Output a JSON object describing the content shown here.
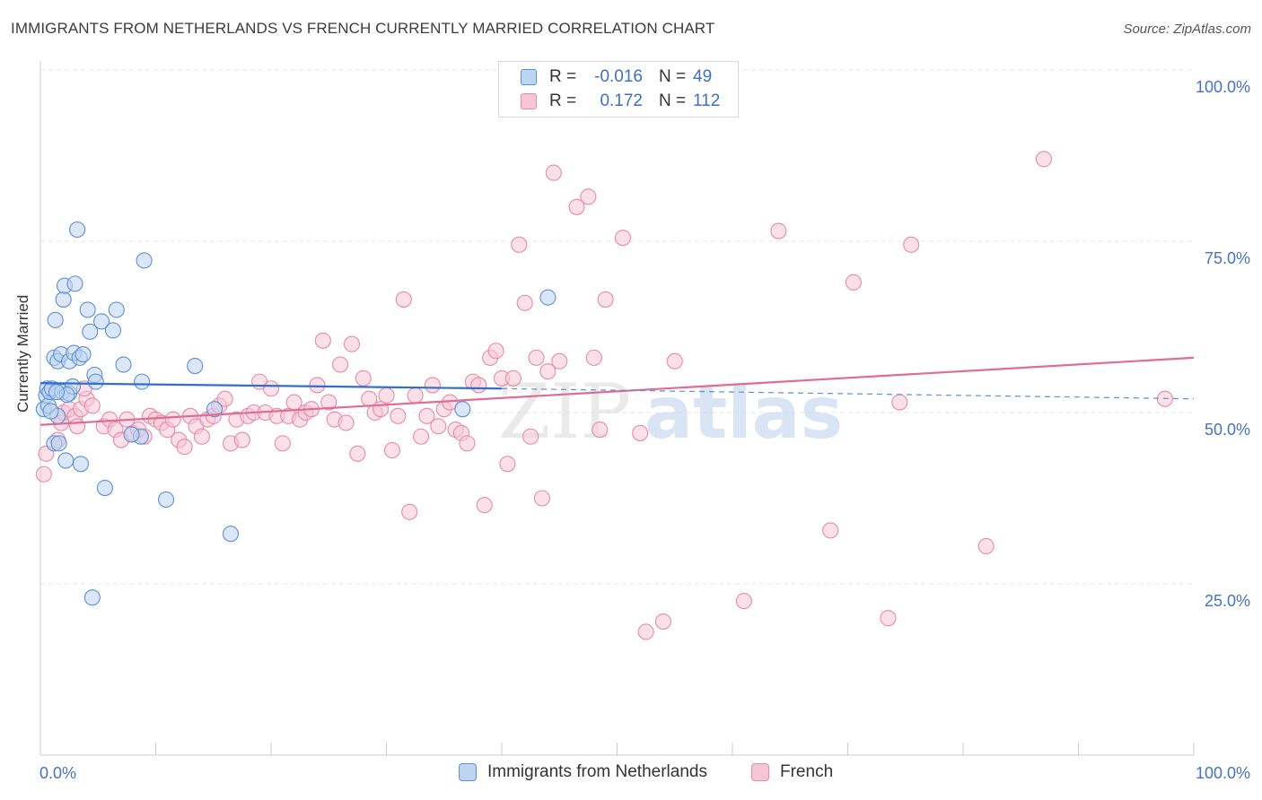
{
  "title": "IMMIGRANTS FROM NETHERLANDS VS FRENCH CURRENTLY MARRIED CORRELATION CHART",
  "source": "Source: ZipAtlas.com",
  "watermark": {
    "zip": "ZIP",
    "atlas": "atlas"
  },
  "legend": {
    "r_label": "R =",
    "n_label": "N =",
    "rows": [
      {
        "r": "-0.016",
        "n": "49"
      },
      {
        "r": "0.172",
        "n": "112"
      }
    ]
  },
  "colors": {
    "blue_fill": "#bdd4f3",
    "blue_stroke": "#5b8fd6",
    "blue_line": "#2f6fcf",
    "pink_fill": "#f7c6d6",
    "pink_stroke": "#e78aa8",
    "pink_line": "#e06b93",
    "grid": "#e6e6e6",
    "tick_text": "#4472c4"
  },
  "chart_data": {
    "type": "scatter",
    "title": "IMMIGRANTS FROM NETHERLANDS VS FRENCH CURRENTLY MARRIED CORRELATION CHART",
    "xlabel": "",
    "ylabel": "Currently Married",
    "xlim": [
      0,
      100
    ],
    "ylim": [
      0,
      102
    ],
    "x_tick_labels": [
      "0.0%",
      "100.0%"
    ],
    "y_tick_labels": [
      "100.0%",
      "75.0%",
      "50.0%",
      "25.0%"
    ],
    "y_tick_values": [
      100,
      75,
      50,
      25
    ],
    "series": [
      {
        "name": "Immigrants from Netherlands",
        "r": -0.016,
        "n": 49,
        "trend": {
          "x": [
            0,
            40
          ],
          "y": [
            54.3,
            53.5
          ],
          "dash_x": [
            40,
            100
          ],
          "dash_y": [
            53.5,
            52.0
          ]
        },
        "points": [
          [
            0.3,
            50.5
          ],
          [
            0.5,
            52.5
          ],
          [
            0.6,
            53.5
          ],
          [
            0.7,
            51.0
          ],
          [
            0.8,
            53.0
          ],
          [
            1.0,
            53.5
          ],
          [
            1.2,
            45.5
          ],
          [
            1.2,
            58.0
          ],
          [
            1.3,
            63.5
          ],
          [
            1.5,
            57.5
          ],
          [
            1.5,
            49.5
          ],
          [
            1.8,
            58.5
          ],
          [
            1.9,
            53.0
          ],
          [
            2.0,
            66.5
          ],
          [
            2.1,
            68.5
          ],
          [
            2.2,
            43.0
          ],
          [
            2.5,
            52.8
          ],
          [
            2.5,
            57.5
          ],
          [
            2.8,
            53.8
          ],
          [
            2.9,
            58.7
          ],
          [
            3.0,
            68.8
          ],
          [
            3.2,
            76.7
          ],
          [
            3.4,
            58.0
          ],
          [
            3.5,
            42.5
          ],
          [
            3.7,
            58.5
          ],
          [
            4.1,
            65.0
          ],
          [
            4.3,
            61.8
          ],
          [
            4.5,
            23.0
          ],
          [
            4.7,
            55.5
          ],
          [
            4.8,
            54.5
          ],
          [
            5.3,
            63.3
          ],
          [
            5.6,
            39.0
          ],
          [
            6.3,
            62.0
          ],
          [
            6.6,
            65.0
          ],
          [
            7.2,
            57.0
          ],
          [
            8.7,
            46.5
          ],
          [
            8.8,
            54.5
          ],
          [
            9.0,
            72.2
          ],
          [
            10.9,
            37.3
          ],
          [
            13.4,
            56.8
          ],
          [
            15.1,
            50.5
          ],
          [
            16.5,
            32.3
          ],
          [
            36.6,
            50.5
          ],
          [
            44.0,
            66.8
          ],
          [
            1.6,
            45.5
          ],
          [
            0.9,
            50.2
          ],
          [
            2.3,
            52.6
          ],
          [
            1.4,
            53.0
          ],
          [
            7.9,
            46.8
          ]
        ]
      },
      {
        "name": "French",
        "r": 0.172,
        "n": 112,
        "trend": {
          "x": [
            0,
            100
          ],
          "y": [
            48.2,
            58.0
          ]
        },
        "points": [
          [
            0.3,
            41.0
          ],
          [
            0.5,
            44.0
          ],
          [
            1.5,
            46.0
          ],
          [
            1.8,
            48.5
          ],
          [
            2.0,
            50.0
          ],
          [
            2.5,
            50.5
          ],
          [
            3.0,
            49.5
          ],
          [
            3.2,
            48.0
          ],
          [
            3.5,
            50.5
          ],
          [
            4.0,
            52.0
          ],
          [
            4.5,
            51.0
          ],
          [
            5.5,
            48.0
          ],
          [
            6.0,
            49.0
          ],
          [
            6.5,
            47.5
          ],
          [
            7.0,
            46.0
          ],
          [
            7.5,
            49.0
          ],
          [
            8.0,
            47.0
          ],
          [
            8.5,
            47.5
          ],
          [
            9.0,
            46.5
          ],
          [
            9.5,
            49.5
          ],
          [
            10.0,
            49.0
          ],
          [
            10.5,
            48.5
          ],
          [
            11.0,
            47.5
          ],
          [
            11.5,
            49.0
          ],
          [
            12.0,
            46.0
          ],
          [
            12.5,
            45.0
          ],
          [
            13.0,
            49.5
          ],
          [
            13.5,
            48.0
          ],
          [
            14.0,
            46.5
          ],
          [
            14.5,
            49.0
          ],
          [
            15.0,
            49.5
          ],
          [
            15.5,
            51.0
          ],
          [
            16.0,
            52.0
          ],
          [
            16.5,
            45.5
          ],
          [
            17.0,
            49.0
          ],
          [
            17.5,
            46.0
          ],
          [
            18.0,
            49.5
          ],
          [
            18.5,
            50.0
          ],
          [
            19.0,
            54.5
          ],
          [
            19.5,
            50.0
          ],
          [
            20.0,
            53.5
          ],
          [
            20.5,
            49.5
          ],
          [
            21.0,
            45.5
          ],
          [
            21.5,
            49.5
          ],
          [
            22.0,
            51.5
          ],
          [
            22.5,
            49.0
          ],
          [
            23.0,
            50.0
          ],
          [
            23.5,
            50.5
          ],
          [
            24.0,
            54.0
          ],
          [
            24.5,
            60.5
          ],
          [
            25.0,
            51.5
          ],
          [
            25.5,
            49.0
          ],
          [
            26.0,
            57.0
          ],
          [
            26.5,
            48.5
          ],
          [
            27.0,
            60.0
          ],
          [
            27.5,
            44.0
          ],
          [
            28.0,
            55.0
          ],
          [
            28.5,
            52.0
          ],
          [
            29.0,
            50.0
          ],
          [
            29.5,
            50.5
          ],
          [
            30.0,
            52.5
          ],
          [
            30.5,
            44.5
          ],
          [
            31.0,
            49.5
          ],
          [
            31.5,
            66.5
          ],
          [
            32.0,
            35.5
          ],
          [
            32.5,
            52.5
          ],
          [
            33.0,
            46.5
          ],
          [
            33.5,
            49.5
          ],
          [
            34.0,
            54.0
          ],
          [
            34.5,
            48.0
          ],
          [
            35.0,
            50.5
          ],
          [
            35.5,
            51.5
          ],
          [
            36.0,
            47.5
          ],
          [
            36.5,
            47.0
          ],
          [
            37.0,
            45.5
          ],
          [
            37.5,
            54.5
          ],
          [
            38.0,
            54.0
          ],
          [
            38.5,
            36.5
          ],
          [
            39.0,
            58.0
          ],
          [
            39.5,
            59.0
          ],
          [
            40.0,
            55.0
          ],
          [
            40.5,
            42.5
          ],
          [
            41.0,
            55.0
          ],
          [
            41.5,
            74.5
          ],
          [
            42.0,
            66.0
          ],
          [
            42.5,
            46.5
          ],
          [
            43.0,
            58.0
          ],
          [
            43.5,
            37.5
          ],
          [
            44.0,
            56.0
          ],
          [
            44.5,
            85.0
          ],
          [
            45.0,
            57.5
          ],
          [
            46.5,
            80.0
          ],
          [
            47.5,
            81.5
          ],
          [
            48.0,
            58.0
          ],
          [
            48.5,
            47.5
          ],
          [
            49.0,
            66.5
          ],
          [
            50.5,
            75.5
          ],
          [
            52.0,
            47.0
          ],
          [
            52.5,
            18.0
          ],
          [
            54.0,
            19.5
          ],
          [
            55.0,
            57.5
          ],
          [
            61.0,
            22.5
          ],
          [
            64.0,
            76.5
          ],
          [
            68.5,
            32.8
          ],
          [
            70.5,
            69.0
          ],
          [
            73.5,
            20.0
          ],
          [
            74.5,
            51.5
          ],
          [
            75.5,
            74.5
          ],
          [
            82.0,
            30.5
          ],
          [
            87.0,
            87.0
          ],
          [
            97.5,
            52.0
          ],
          [
            3.8,
            53.5
          ]
        ]
      }
    ]
  },
  "bottom_legend": {
    "items": [
      {
        "label": "Immigrants from Netherlands"
      },
      {
        "label": "French"
      }
    ]
  }
}
